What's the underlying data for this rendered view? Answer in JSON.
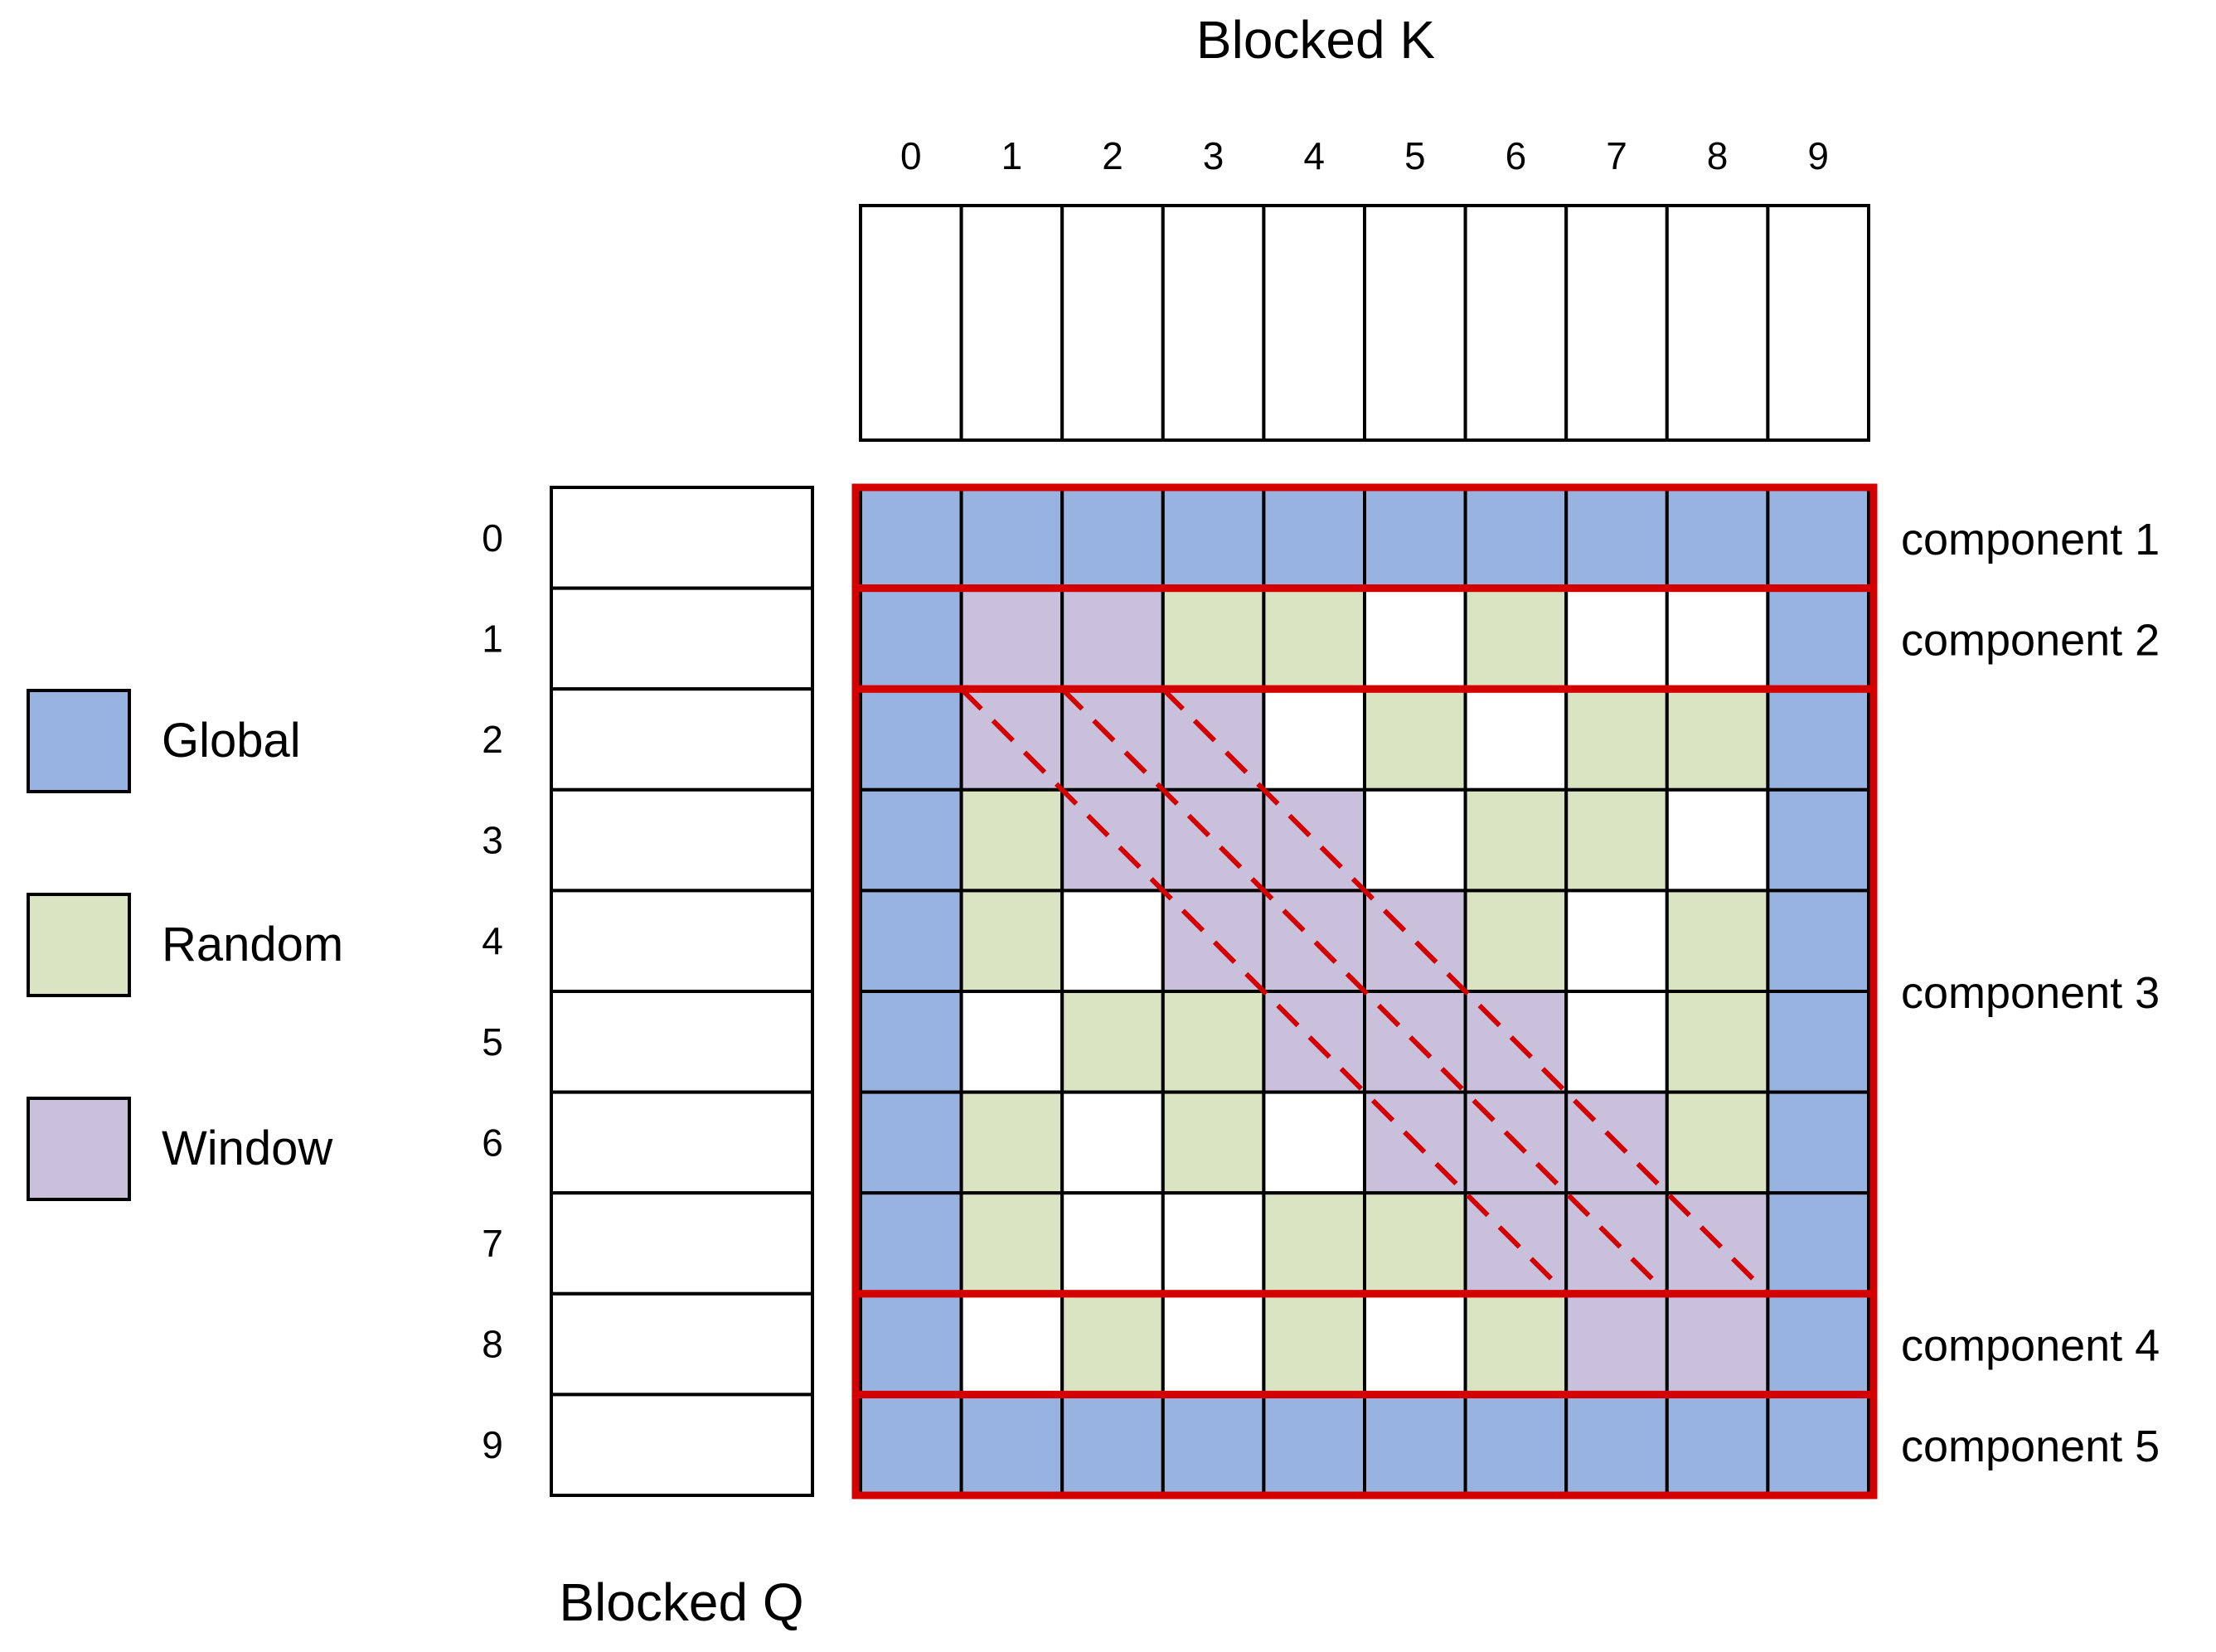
{
  "key_title": "Blocked K",
  "query_title": "Blocked Q",
  "column_labels": [
    "0",
    "1",
    "2",
    "3",
    "4",
    "5",
    "6",
    "7",
    "8",
    "9"
  ],
  "row_labels": [
    "0",
    "1",
    "2",
    "3",
    "4",
    "5",
    "6",
    "7",
    "8",
    "9"
  ],
  "legend": [
    {
      "key": "G",
      "label": "Global",
      "color": "#99b3e0"
    },
    {
      "key": "R",
      "label": "Random",
      "color": "#dbe4c2"
    },
    {
      "key": "W",
      "label": "Window",
      "color": "#c9c1dc"
    }
  ],
  "empty_color": "#ffffff",
  "highlight_color": "#d40000",
  "grid": [
    "GGGGGGGGGG",
    "GWWRR.R..G",
    "GWWW.R.RRG",
    "GRWWW.RR.G",
    "GR.WWWR.RG",
    "G.RRWWW.RG",
    "GR.R.WWWRG",
    "GR..RRWWWG",
    "G.R.R.RWWG",
    "GGGGGGGGGG"
  ],
  "components": [
    {
      "label": "component 1",
      "first_row": 0,
      "last_row": 0
    },
    {
      "label": "component 2",
      "first_row": 1,
      "last_row": 1
    },
    {
      "label": "component 3",
      "first_row": 2,
      "last_row": 7
    },
    {
      "label": "component 4",
      "first_row": 8,
      "last_row": 8
    },
    {
      "label": "component 5",
      "first_row": 9,
      "last_row": 9
    }
  ],
  "window_diagonals": [
    {
      "from": [
        1,
        2
      ],
      "to": [
        7,
        8
      ]
    },
    {
      "from": [
        2,
        2
      ],
      "to": [
        8,
        8
      ]
    },
    {
      "from": [
        3,
        2
      ],
      "to": [
        9,
        8
      ]
    }
  ]
}
